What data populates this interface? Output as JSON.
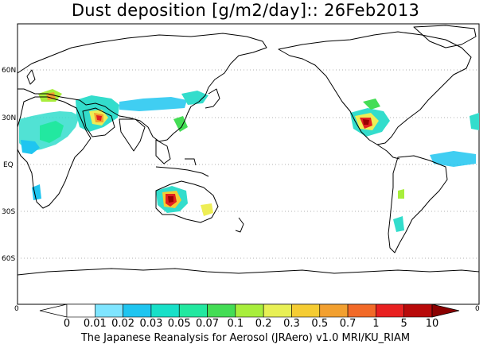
{
  "header": {
    "title": "Dust deposition [g/m2/day]:: 26Feb2013"
  },
  "map": {
    "lat_labels": [
      "60N",
      "30N",
      "EQ",
      "30S",
      "60S"
    ],
    "colors": {
      "land_outline": "#000000",
      "grid": "#999999",
      "dust_low": "#33ddcc",
      "dust_mid": "#eeee55",
      "dust_high": "#e02020",
      "dust_peak": "#990000"
    }
  },
  "colorbar": {
    "left_end_label": "0",
    "right_end_label": "0",
    "ticks": [
      "0",
      "0.01",
      "0.02",
      "0.03",
      "0.05",
      "0.07",
      "0.1",
      "0.2",
      "0.3",
      "0.5",
      "0.7",
      "1",
      "5",
      "10"
    ],
    "colors": [
      "#ffffff",
      "#ffffff",
      "#7fe5ff",
      "#1fc5f0",
      "#18e0c8",
      "#22e8a0",
      "#44dd55",
      "#a8ee3c",
      "#e8f055",
      "#f5cc33",
      "#f2a030",
      "#f26a28",
      "#e82020",
      "#b80a0a",
      "#8a0000"
    ]
  },
  "footer": {
    "credit": "The Japanese Reanalysis for Aerosol (JRAero) v1.0 MRI/KU_RIAM"
  }
}
